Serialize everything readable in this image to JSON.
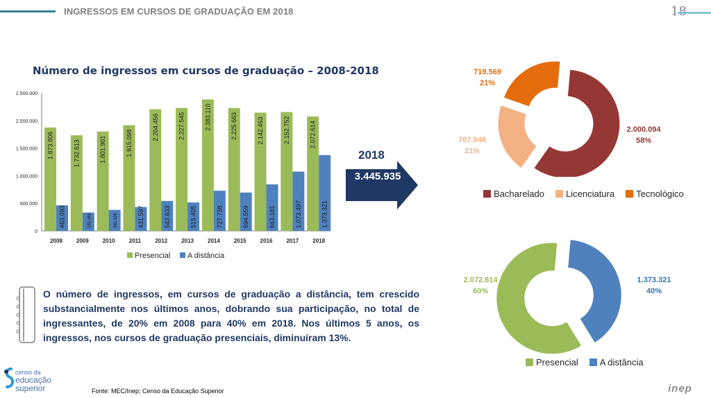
{
  "header": {
    "title": "INGRESSOS EM CURSOS DE GRADUAÇÃO EM 2018",
    "page_number": "18"
  },
  "summary": {
    "year": "2018",
    "total": "3.445.935"
  },
  "note": {
    "text": "O número de ingressos, em cursos de graduação a distância, tem crescido substancialmente nos últimos anos, dobrando sua participação, no total de ingressantes, de 20% em 2008 para 40% em 2018. Nos últimos 5 anos, os ingressos, nos cursos de graduação presenciais, diminuíram 13%.",
    "icon": "notebook-icon"
  },
  "footer": {
    "source": "Fonte: MEC/Inep; Censo da Educação Superior",
    "logo_line1": "censo da",
    "logo_line2": "educação",
    "logo_line3": "superior",
    "inep_logo": "inep"
  },
  "colors": {
    "presencial": "#9bbb59",
    "distancia": "#4f81bd",
    "bacharelado": "#953735",
    "licenciatura": "#f4b183",
    "tecnologico": "#e46c0a",
    "title_navy": "#1f3864"
  },
  "chart_data": [
    {
      "type": "bar",
      "title": "Número de ingressos em cursos de graduação – 2008-2018",
      "xlabel": "",
      "ylabel": "",
      "ylim": [
        0,
        2500000
      ],
      "yticks": [
        "0",
        "500.000",
        "1.000.000",
        "1.500.000",
        "2.000.000",
        "2.500.000"
      ],
      "ytick_values": [
        0,
        500000,
        1000000,
        1500000,
        2000000,
        2500000
      ],
      "categories": [
        "2008",
        "2009",
        "2010",
        "2011",
        "2012",
        "2013",
        "2014",
        "2015",
        "2016",
        "2017",
        "2018"
      ],
      "legend_position": "bottom",
      "series": [
        {
          "name": "Presencial",
          "values": [
            1873806,
            1732613,
            1801901,
            1915098,
            2204456,
            2227545,
            2383110,
            2225663,
            2142463,
            2152752,
            2072614
          ],
          "labels": [
            "1.873.806",
            "1.732.613",
            "1.801.901",
            "1.915.098",
            "2.204.456",
            "2.227.545",
            "2.383.110",
            "2.225.663",
            "2.142.463",
            "2.152.752",
            "2.072.614"
          ]
        },
        {
          "name": "A distância",
          "values": [
            463093,
            332469,
            380328,
            431597,
            542633,
            515405,
            727738,
            694559,
            843181,
            1073497,
            1373321
          ],
          "labels": [
            "463.093",
            "332.469",
            "380.328",
            "431.597",
            "542.633",
            "515.405",
            "727.738",
            "694.559",
            "843.181",
            "1.073.497",
            "1.373.321"
          ]
        }
      ]
    },
    {
      "type": "pie",
      "variant": "donut-exploded",
      "title": "",
      "legend_position": "bottom",
      "slices": [
        {
          "name": "Bacharelado",
          "value": 2000094,
          "label": "2.000.094",
          "percent": "58%"
        },
        {
          "name": "Licenciatura",
          "value": 707048,
          "label": "707.048",
          "percent": "21%"
        },
        {
          "name": "Tecnológico",
          "value": 719569,
          "label": "719.569",
          "percent": "21%"
        }
      ]
    },
    {
      "type": "pie",
      "variant": "donut-exploded",
      "title": "",
      "legend_position": "bottom",
      "slices": [
        {
          "name": "Presencial",
          "value": 2072614,
          "label": "2.072.614",
          "percent": "60%"
        },
        {
          "name": "A distância",
          "value": 1373321,
          "label": "1.373.321",
          "percent": "40%"
        }
      ]
    }
  ]
}
